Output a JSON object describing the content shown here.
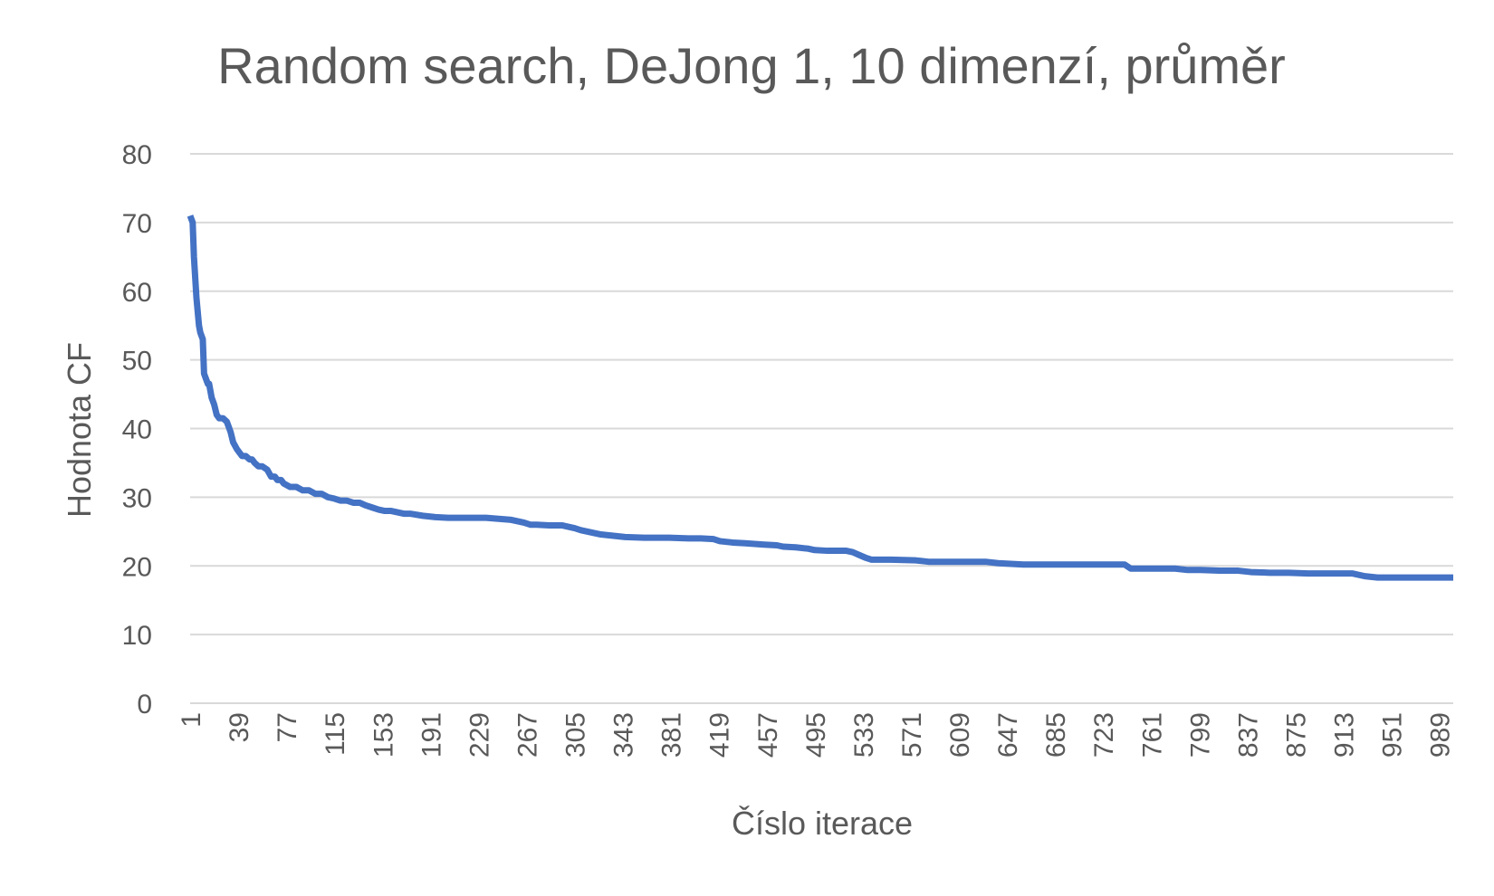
{
  "chart_data": {
    "type": "line",
    "title": "Random search, DeJong 1, 10 dimenzí, průměr",
    "xlabel": "Číslo iterace",
    "ylabel": "Hodnota CF",
    "xlim": [
      1,
      1000
    ],
    "ylim": [
      0,
      80
    ],
    "y_ticks": [
      0,
      10,
      20,
      30,
      40,
      50,
      60,
      70,
      80
    ],
    "x_tick_labels": [
      "1",
      "39",
      "77",
      "115",
      "153",
      "191",
      "229",
      "267",
      "305",
      "343",
      "381",
      "419",
      "457",
      "495",
      "533",
      "571",
      "609",
      "647",
      "685",
      "723",
      "761",
      "799",
      "837",
      "875",
      "913",
      "951",
      "989"
    ],
    "grid": true,
    "legend": "none",
    "line_color": "#4472c4",
    "series": [
      {
        "x": [
          1,
          3,
          4,
          6,
          7,
          8,
          9,
          11,
          12,
          14,
          15,
          16,
          18,
          20,
          22,
          24,
          27,
          30,
          33,
          35,
          38,
          40,
          42,
          45,
          48,
          50,
          52,
          55,
          58,
          62,
          65,
          68,
          70,
          73,
          75,
          80,
          85,
          90,
          95,
          100,
          105,
          110,
          115,
          120,
          125,
          130,
          135,
          140,
          145,
          150,
          155,
          160,
          165,
          170,
          175,
          185,
          195,
          205,
          215,
          225,
          235,
          255,
          265,
          270,
          275,
          285,
          295,
          305,
          310,
          315,
          320,
          325,
          335,
          345,
          360,
          380,
          395,
          405,
          415,
          420,
          430,
          440,
          455,
          465,
          470,
          480,
          490,
          495,
          505,
          520,
          525,
          530,
          535,
          540,
          555,
          575,
          585,
          610,
          630,
          640,
          660,
          690,
          720,
          740,
          745,
          760,
          780,
          790,
          800,
          815,
          830,
          840,
          855,
          870,
          885,
          900,
          915,
          920,
          930,
          940,
          950,
          960,
          980,
          1000
        ],
        "y": [
          71,
          70,
          65,
          59,
          57,
          55,
          54,
          53,
          48,
          47,
          46.5,
          46.5,
          44.5,
          43.5,
          42,
          41.5,
          41.5,
          41,
          39.5,
          38,
          37,
          36.5,
          36,
          36,
          35.5,
          35.5,
          35,
          34.5,
          34.5,
          34,
          33,
          33,
          32.5,
          32.5,
          32,
          31.5,
          31.5,
          31,
          31,
          30.5,
          30.5,
          30,
          29.8,
          29.5,
          29.5,
          29.2,
          29.2,
          28.8,
          28.5,
          28.2,
          28,
          28,
          27.8,
          27.6,
          27.6,
          27.3,
          27.1,
          27,
          27,
          27,
          27,
          26.7,
          26.3,
          26,
          26,
          25.9,
          25.9,
          25.5,
          25.2,
          25,
          24.8,
          24.6,
          24.4,
          24.2,
          24.1,
          24.1,
          24,
          24,
          23.9,
          23.6,
          23.4,
          23.3,
          23.1,
          23,
          22.8,
          22.7,
          22.5,
          22.3,
          22.2,
          22.2,
          22,
          21.6,
          21.2,
          20.9,
          20.9,
          20.8,
          20.6,
          20.6,
          20.6,
          20.4,
          20.2,
          20.2,
          20.2,
          20.2,
          19.6,
          19.6,
          19.6,
          19.4,
          19.4,
          19.3,
          19.3,
          19.1,
          19,
          19,
          18.9,
          18.9,
          18.9,
          18.9,
          18.5,
          18.3,
          18.3,
          18.3,
          18.3,
          18.3
        ]
      }
    ]
  }
}
